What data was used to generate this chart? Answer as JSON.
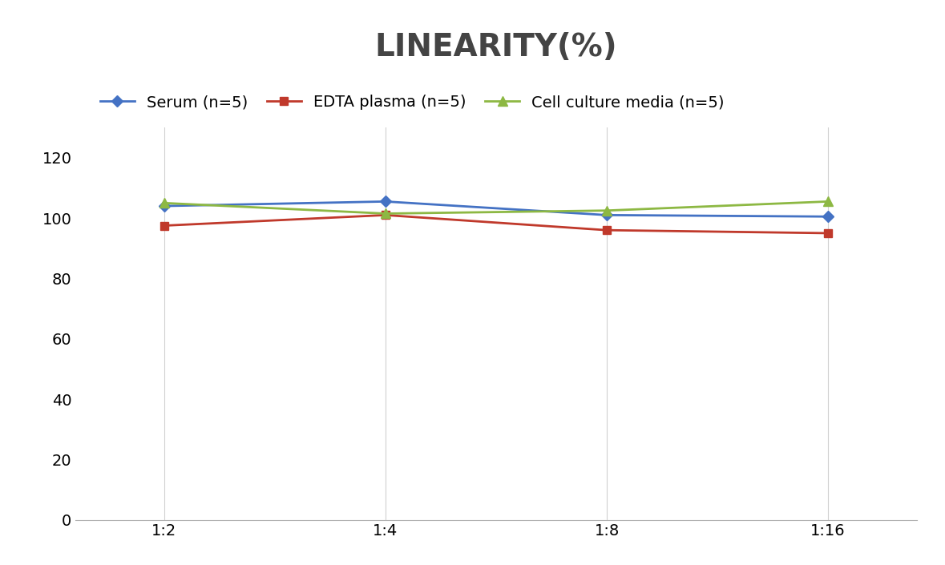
{
  "title": "LINEARITY(%)",
  "title_fontsize": 28,
  "title_fontweight": "bold",
  "title_color": "#444444",
  "x_labels": [
    "1:2",
    "1:4",
    "1:8",
    "1:16"
  ],
  "series": [
    {
      "label": "Serum (n=5)",
      "values": [
        104.0,
        105.5,
        101.0,
        100.5
      ],
      "color": "#4472C4",
      "marker": "D",
      "markersize": 7,
      "linewidth": 2.0
    },
    {
      "label": "EDTA plasma (n=5)",
      "values": [
        97.5,
        101.0,
        96.0,
        95.0
      ],
      "color": "#C0392B",
      "marker": "s",
      "markersize": 7,
      "linewidth": 2.0
    },
    {
      "label": "Cell culture media (n=5)",
      "values": [
        105.0,
        101.5,
        102.5,
        105.5
      ],
      "color": "#8DB843",
      "marker": "^",
      "markersize": 9,
      "linewidth": 2.0
    }
  ],
  "ylim": [
    0,
    130
  ],
  "yticks": [
    0,
    20,
    40,
    60,
    80,
    100,
    120
  ],
  "background_color": "#ffffff",
  "grid_color": "#d0d0d0",
  "legend_fontsize": 14,
  "axis_fontsize": 14
}
